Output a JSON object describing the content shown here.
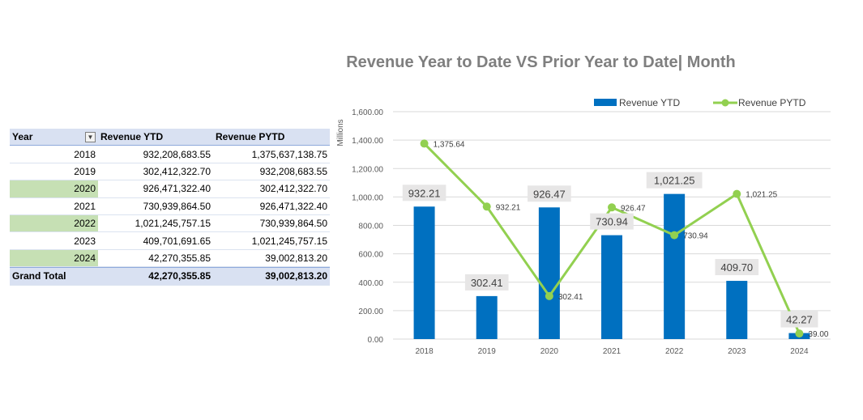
{
  "pivot": {
    "headers": {
      "year": "Year",
      "ytd": "Revenue YTD",
      "pytd": "Revenue PYTD"
    },
    "rows": [
      {
        "year": "2018",
        "ytd": "932,208,683.55",
        "pytd": "1,375,637,138.75",
        "highlight": false
      },
      {
        "year": "2019",
        "ytd": "302,412,322.70",
        "pytd": "932,208,683.55",
        "highlight": false
      },
      {
        "year": "2020",
        "ytd": "926,471,322.40",
        "pytd": "302,412,322.70",
        "highlight": true
      },
      {
        "year": "2021",
        "ytd": "730,939,864.50",
        "pytd": "926,471,322.40",
        "highlight": false
      },
      {
        "year": "2022",
        "ytd": "1,021,245,757.15",
        "pytd": "730,939,864.50",
        "highlight": true
      },
      {
        "year": "2023",
        "ytd": "409,701,691.65",
        "pytd": "1,021,245,757.15",
        "highlight": false
      },
      {
        "year": "2024",
        "ytd": "42,270,355.85",
        "pytd": "39,002,813.20",
        "highlight": true
      }
    ],
    "total": {
      "label": "Grand Total",
      "ytd": "42,270,355.85",
      "pytd": "39,002,813.20"
    },
    "highlight_color": "#c6e0b4",
    "header_color": "#d9e1f2",
    "filter_icon": "filter-icon"
  },
  "chart_data": {
    "type": "bar",
    "title": "Revenue Year to Date VS Prior Year to Date| Month",
    "ylabel": "Millions",
    "xlabel": "",
    "categories": [
      "2018",
      "2019",
      "2020",
      "2021",
      "2022",
      "2023",
      "2024"
    ],
    "series": [
      {
        "name": "Revenue YTD",
        "kind": "bar",
        "color": "#0070c0",
        "values": [
          932.21,
          302.41,
          926.47,
          730.94,
          1021.25,
          409.7,
          42.27
        ],
        "labels": [
          "932.21",
          "302.41",
          "926.47",
          "730.94",
          "1,021.25",
          "409.70",
          "42.27"
        ]
      },
      {
        "name": "Revenue PYTD",
        "kind": "line",
        "color": "#92d050",
        "values": [
          1375.64,
          932.21,
          302.41,
          926.47,
          730.94,
          1021.25,
          39.0
        ],
        "labels": [
          "1,375.64",
          "932.21",
          "302.41",
          "926.47",
          "730.94",
          "1,021.25",
          "39.00"
        ]
      }
    ],
    "ylim": [
      0,
      1600
    ],
    "yticks": [
      "0.00",
      "200.00",
      "400.00",
      "600.00",
      "800.00",
      "1,000.00",
      "1,200.00",
      "1,400.00",
      "1,600.00"
    ],
    "ytick_values": [
      0,
      200,
      400,
      600,
      800,
      1000,
      1200,
      1400,
      1600
    ],
    "grid": true,
    "legend": "top-right"
  }
}
